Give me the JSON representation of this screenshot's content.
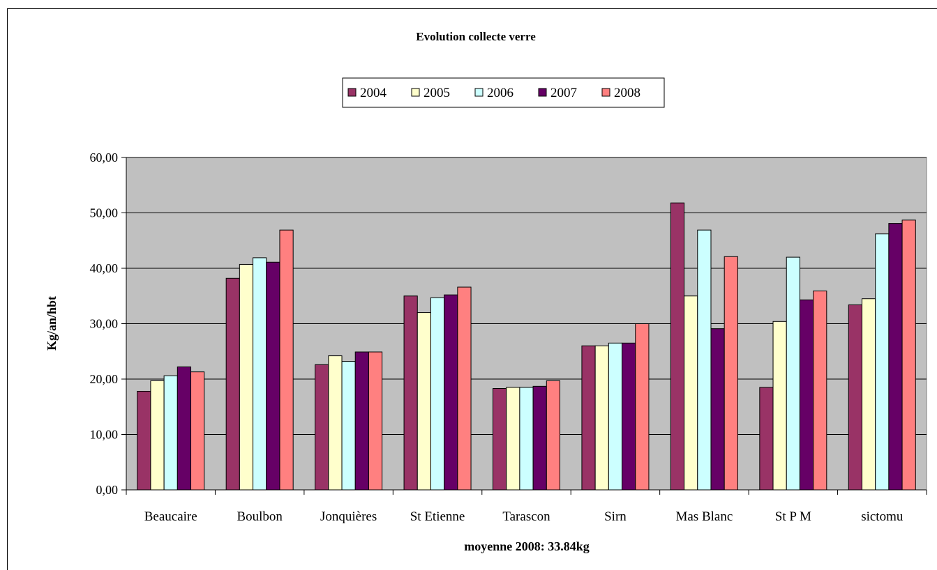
{
  "chart_data": {
    "type": "bar",
    "title": "Evolution collecte verre",
    "xlabel": "moyenne 2008: 33.84kg",
    "ylabel": "Kg/an/hbt",
    "ylim": [
      0,
      60
    ],
    "yticks": [
      "0,00",
      "10,00",
      "20,00",
      "30,00",
      "40,00",
      "50,00",
      "60,00"
    ],
    "grid": true,
    "legend_position": "top-center",
    "categories": [
      "Beaucaire",
      "Boulbon",
      "Jonquières",
      "St Etienne",
      "Tarascon",
      "Sirn",
      "Mas Blanc",
      "St P M",
      "sictomu"
    ],
    "series": [
      {
        "name": "2004",
        "color": "#993366",
        "values": [
          17.8,
          38.2,
          22.6,
          35.0,
          18.3,
          26.0,
          51.8,
          18.5,
          33.4
        ]
      },
      {
        "name": "2005",
        "color": "#FFFFCC",
        "values": [
          19.7,
          40.7,
          24.2,
          32.0,
          18.5,
          26.0,
          35.0,
          30.4,
          34.5
        ]
      },
      {
        "name": "2006",
        "color": "#CCFFFF",
        "values": [
          20.6,
          41.9,
          23.2,
          34.7,
          18.5,
          26.5,
          46.9,
          42.0,
          46.2
        ]
      },
      {
        "name": "2007",
        "color": "#660066",
        "values": [
          22.2,
          41.1,
          24.9,
          35.2,
          18.7,
          26.5,
          29.1,
          34.3,
          48.1
        ]
      },
      {
        "name": "2008",
        "color": "#FF8080",
        "values": [
          21.3,
          46.9,
          24.9,
          36.6,
          19.7,
          30.0,
          42.1,
          35.9,
          48.7
        ]
      }
    ],
    "colors": {
      "plot_background": "#C0C0C0",
      "gridline": "#000000"
    }
  }
}
